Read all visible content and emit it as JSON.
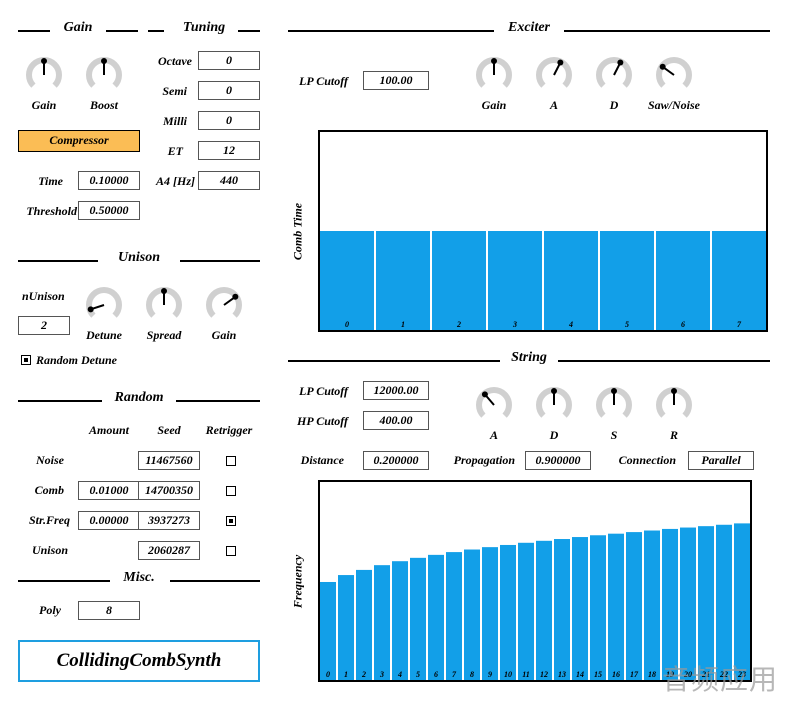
{
  "sections": {
    "gain": "Gain",
    "tuning": "Tuning",
    "exciter": "Exciter",
    "unison": "Unison",
    "random": "Random",
    "misc": "Misc.",
    "string": "String"
  },
  "gain": {
    "knobs": [
      {
        "label": "Gain",
        "value": 0.5
      },
      {
        "label": "Boost",
        "value": 0.5
      }
    ],
    "compressor_label": "Compressor",
    "time_label": "Time",
    "time_value": "0.10000",
    "threshold_label": "Threshold",
    "threshold_value": "0.50000"
  },
  "tuning": {
    "fields": [
      {
        "label": "Octave",
        "value": "0"
      },
      {
        "label": "Semi",
        "value": "0"
      },
      {
        "label": "Milli",
        "value": "0"
      },
      {
        "label": "ET",
        "value": "12"
      },
      {
        "label": "A4 [Hz]",
        "value": "440"
      }
    ]
  },
  "unison": {
    "n_label": "nUnison",
    "n_value": "2",
    "knobs": [
      {
        "label": "Detune",
        "value": 0.1
      },
      {
        "label": "Spread",
        "value": 0.5
      },
      {
        "label": "Gain",
        "value": 0.7
      }
    ],
    "random_detune_label": "Random Detune",
    "random_detune_checked": true
  },
  "random": {
    "headers": {
      "amount": "Amount",
      "seed": "Seed",
      "retrigger": "Retrigger"
    },
    "rows": [
      {
        "label": "Noise",
        "amount": "",
        "seed": "11467560",
        "retrigger": false
      },
      {
        "label": "Comb",
        "amount": "0.01000",
        "seed": "14700350",
        "retrigger": false
      },
      {
        "label": "Str.Freq",
        "amount": "0.00000",
        "seed": "3937273",
        "retrigger": true
      },
      {
        "label": "Unison",
        "amount": "",
        "seed": "2060287",
        "retrigger": false
      }
    ]
  },
  "misc": {
    "poly_label": "Poly",
    "poly_value": "8"
  },
  "app_name": "CollidingCombSynth",
  "exciter": {
    "lp_label": "LP Cutoff",
    "lp_value": "100.00",
    "knobs": [
      {
        "label": "Gain",
        "value": 0.5
      },
      {
        "label": "A",
        "value": 0.6
      },
      {
        "label": "D",
        "value": 0.6
      },
      {
        "label": "Saw/Noise",
        "value": 0.3
      }
    ],
    "comb_ylabel": "Comb Time"
  },
  "string": {
    "lp_label": "LP Cutoff",
    "lp_value": "12000.00",
    "hp_label": "HP Cutoff",
    "hp_value": "400.00",
    "knobs": [
      {
        "label": "A",
        "value": 0.35
      },
      {
        "label": "D",
        "value": 0.5
      },
      {
        "label": "S",
        "value": 0.5
      },
      {
        "label": "R",
        "value": 0.5
      }
    ],
    "distance_label": "Distance",
    "distance_value": "0.200000",
    "propagation_label": "Propagation",
    "propagation_value": "0.900000",
    "connection_label": "Connection",
    "connection_value": "Parallel",
    "freq_ylabel": "Frequency"
  },
  "colors": {
    "accent": "#129fe8",
    "compressor": "#fbbd55",
    "knob_track": "#d0d0d0",
    "app_border": "#1e9ee0"
  },
  "chart_data": [
    {
      "type": "bar",
      "ylabel": "Comb Time",
      "categories": [
        "0",
        "1",
        "2",
        "3",
        "4",
        "5",
        "6",
        "7"
      ],
      "values": [
        0.5,
        0.5,
        0.5,
        0.5,
        0.5,
        0.5,
        0.5,
        0.5
      ],
      "ylim": [
        0,
        1
      ]
    },
    {
      "type": "bar",
      "ylabel": "Frequency",
      "categories": [
        "0",
        "1",
        "2",
        "3",
        "4",
        "5",
        "6",
        "7",
        "8",
        "9",
        "10",
        "11",
        "12",
        "13",
        "14",
        "15",
        "16",
        "17",
        "18",
        "19",
        "20",
        "21",
        "22",
        "23"
      ],
      "values": [
        0.495,
        0.53,
        0.556,
        0.58,
        0.6,
        0.617,
        0.632,
        0.646,
        0.659,
        0.671,
        0.682,
        0.693,
        0.703,
        0.712,
        0.722,
        0.731,
        0.739,
        0.747,
        0.755,
        0.763,
        0.77,
        0.777,
        0.784,
        0.791
      ],
      "ylim": [
        0,
        1
      ]
    }
  ],
  "watermark": "音频应用"
}
